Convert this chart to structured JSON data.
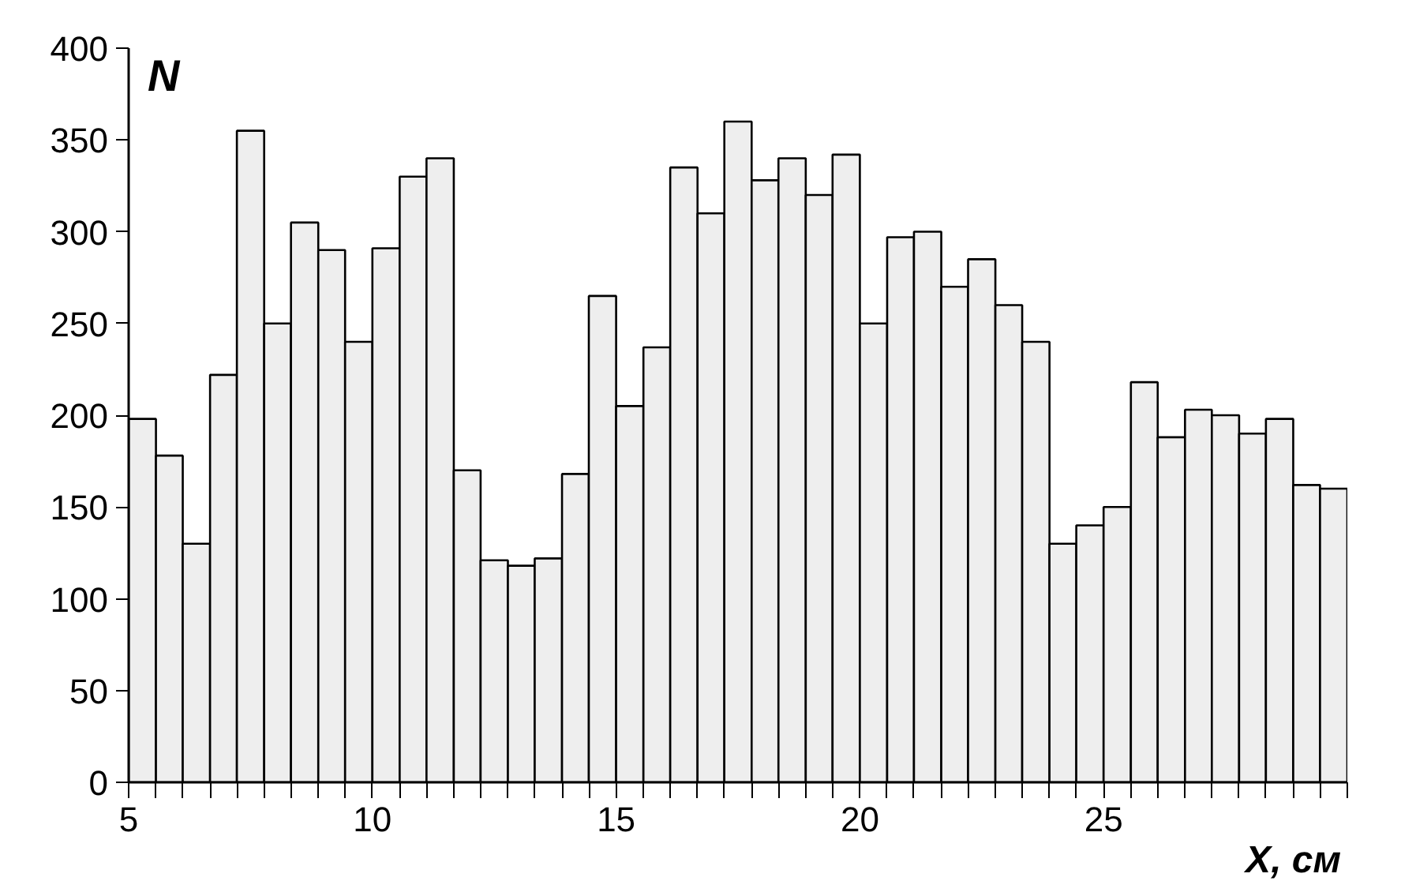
{
  "chart_data": {
    "type": "histogram",
    "xlabel": "X, см",
    "ylabel": "N",
    "bins": [
      5,
      5.56,
      6.11,
      6.67,
      7.22,
      7.78,
      8.33,
      8.89,
      9.44,
      10,
      10.56,
      11.11,
      11.67,
      12.22,
      12.78,
      13.33,
      13.89,
      14.44,
      15,
      15.56,
      16.11,
      16.67,
      17.22,
      17.78,
      18.33,
      18.89,
      19.44,
      20,
      20.56,
      21.11,
      21.67,
      22.22,
      22.78,
      23.33,
      23.89,
      24.44,
      25,
      25.56,
      26.11,
      26.67,
      27.22,
      27.78,
      28.33,
      28.89,
      29.44,
      30
    ],
    "values": [
      198,
      178,
      130,
      222,
      355,
      250,
      305,
      290,
      240,
      291,
      330,
      340,
      170,
      121,
      118,
      122,
      168,
      265,
      205,
      237,
      335,
      310,
      360,
      328,
      340,
      320,
      342,
      250,
      297,
      300,
      270,
      285,
      260,
      240,
      130,
      140,
      150,
      218,
      188,
      203,
      200,
      190,
      198,
      162,
      160
    ],
    "color": "#eeeeee",
    "xlim": [
      5,
      30
    ],
    "xticks": [
      5,
      10,
      15,
      20,
      25
    ],
    "ylim": [
      0,
      400
    ],
    "yticks": [
      0,
      50,
      100,
      150,
      200,
      250,
      300,
      350,
      400
    ],
    "grid": false
  }
}
